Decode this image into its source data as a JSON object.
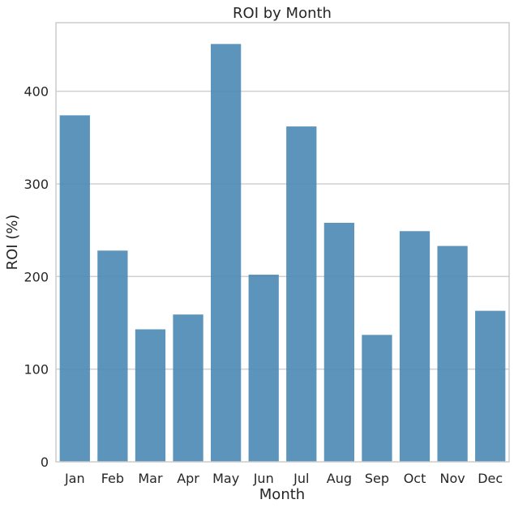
{
  "chart_data": {
    "type": "bar",
    "title": "ROI by Month",
    "xlabel": "Month",
    "ylabel": "ROI (%)",
    "categories": [
      "Jan",
      "Feb",
      "Mar",
      "Apr",
      "May",
      "Jun",
      "Jul",
      "Aug",
      "Sep",
      "Oct",
      "Nov",
      "Dec"
    ],
    "values": [
      374,
      228,
      143,
      159,
      451,
      202,
      362,
      258,
      137,
      249,
      233,
      163
    ],
    "ylim": [
      0,
      474
    ],
    "yticks": [
      0,
      100,
      200,
      300,
      400
    ],
    "grid": "horizontal",
    "bar_color": "#4a88b5",
    "axes_edge_color": "#cccccc",
    "grid_color": "#d0d0d0"
  }
}
